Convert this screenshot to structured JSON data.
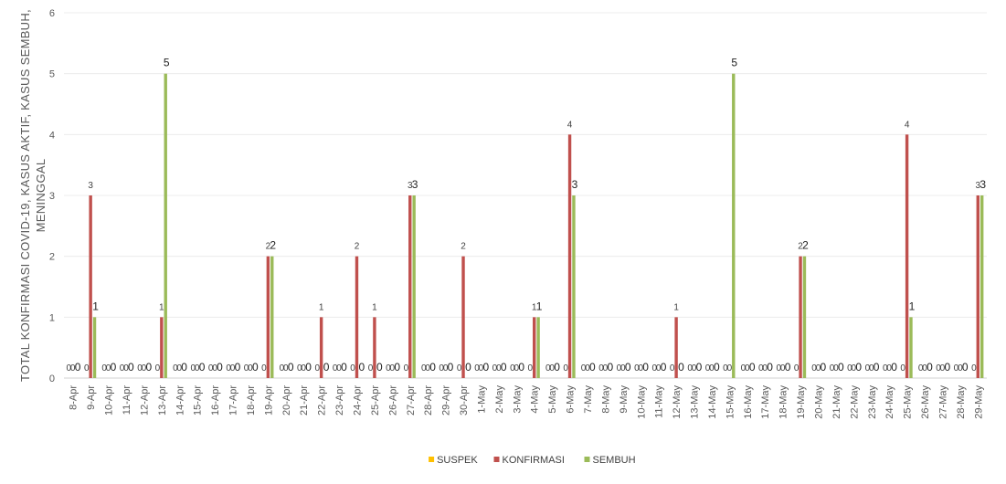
{
  "chart_data": {
    "type": "bar",
    "title": "",
    "ylabel_lines": [
      "TOTAL KONFIRMASI COVID-19, KASUS AKTIF, KASUS SEMBUH,",
      "MENINGGAL"
    ],
    "xlabel": "",
    "ylim": [
      0,
      6
    ],
    "yticks": [
      0,
      1,
      2,
      3,
      4,
      5,
      6
    ],
    "grid": true,
    "legend_position": "bottom",
    "categories": [
      "8-Apr",
      "9-Apr",
      "10-Apr",
      "11-Apr",
      "12-Apr",
      "13-Apr",
      "14-Apr",
      "15-Apr",
      "16-Apr",
      "17-Apr",
      "18-Apr",
      "19-Apr",
      "20-Apr",
      "21-Apr",
      "22-Apr",
      "23-Apr",
      "24-Apr",
      "25-Apr",
      "26-Apr",
      "27-Apr",
      "28-Apr",
      "29-Apr",
      "30-Apr",
      "1-May",
      "2-May",
      "3-May",
      "4-May",
      "5-May",
      "6-May",
      "7-May",
      "8-May",
      "9-May",
      "10-May",
      "11-May",
      "12-May",
      "13-May",
      "14-May",
      "15-May",
      "16-May",
      "17-May",
      "18-May",
      "19-May",
      "20-May",
      "21-May",
      "22-May",
      "23-May",
      "24-May",
      "25-May",
      "26-May",
      "27-May",
      "28-May",
      "29-May"
    ],
    "series": [
      {
        "name": "SUSPEK",
        "color": "#FFC000",
        "values": [
          0,
          0,
          0,
          0,
          0,
          0,
          0,
          0,
          0,
          0,
          0,
          0,
          0,
          0,
          0,
          0,
          0,
          0,
          0,
          0,
          0,
          0,
          0,
          0,
          0,
          0,
          0,
          0,
          0,
          0,
          0,
          0,
          0,
          0,
          0,
          0,
          0,
          0,
          0,
          0,
          0,
          0,
          0,
          0,
          0,
          0,
          0,
          0,
          0,
          0,
          0,
          0
        ]
      },
      {
        "name": "KONFIRMASI",
        "color": "#C0504D",
        "values": [
          0,
          3,
          0,
          0,
          0,
          1,
          0,
          0,
          0,
          0,
          0,
          2,
          0,
          0,
          1,
          0,
          2,
          1,
          0,
          3,
          0,
          0,
          2,
          0,
          0,
          0,
          1,
          0,
          4,
          0,
          0,
          0,
          0,
          0,
          1,
          0,
          0,
          0,
          0,
          0,
          0,
          2,
          0,
          0,
          0,
          0,
          0,
          4,
          0,
          0,
          0,
          3
        ]
      },
      {
        "name": "SEMBUH",
        "color": "#9BBB59",
        "values": [
          0,
          1,
          0,
          0,
          0,
          5,
          0,
          0,
          0,
          0,
          0,
          2,
          0,
          0,
          0,
          0,
          0,
          0,
          0,
          3,
          0,
          0,
          0,
          0,
          0,
          0,
          1,
          0,
          3,
          0,
          0,
          0,
          0,
          0,
          0,
          0,
          0,
          5,
          0,
          0,
          0,
          2,
          0,
          0,
          0,
          0,
          0,
          1,
          0,
          0,
          0,
          3
        ]
      }
    ]
  }
}
